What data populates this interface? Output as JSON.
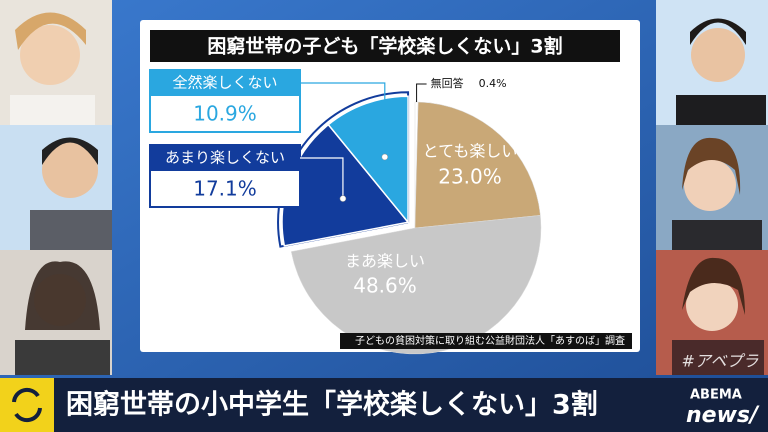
{
  "header": {
    "channel_tag": "#アベプラ",
    "logo_top": "ABEMA",
    "logo_bottom": "news/"
  },
  "banner": {
    "headline": "困窮世帯の小中学生「学校楽しくない」3割"
  },
  "chart_data": {
    "type": "pie",
    "title": "困窮世帯の子ども「学校楽しくない」3割",
    "source": "子どもの貧困対策に取り組む公益財団法人「あすのば」調査",
    "categories": [
      "無回答",
      "とても楽しい",
      "まあ楽しい",
      "あまり楽しくない",
      "全然楽しくない"
    ],
    "values": [
      0.4,
      23.0,
      48.6,
      17.1,
      10.9
    ],
    "value_labels": [
      "0.4%",
      "23.0%",
      "48.6%",
      "17.1%",
      "10.9%"
    ],
    "colors": [
      "#ffffff",
      "#c9a877",
      "#c8c8c8",
      "#123c9c",
      "#2aa7e0"
    ],
    "exploded": [
      false,
      false,
      false,
      true,
      true
    ]
  }
}
